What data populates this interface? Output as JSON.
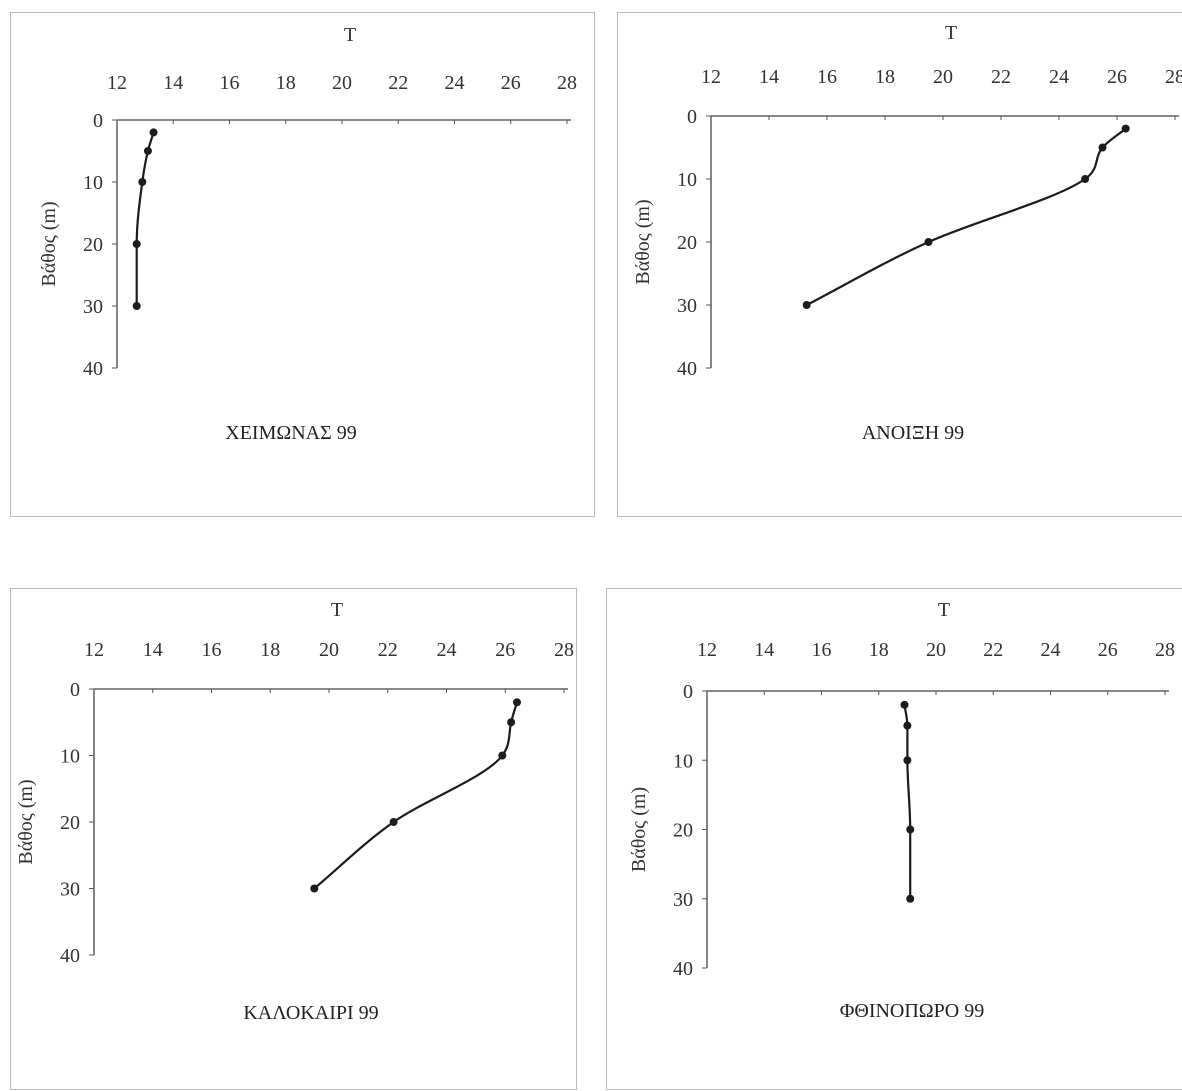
{
  "chart_data": [
    {
      "type": "line",
      "title": "ΧΕΙΜΩΝΑΣ 99",
      "xlabel": "T",
      "ylabel": "Βάθος (m)",
      "xlim": [
        12,
        28
      ],
      "ylim": [
        0,
        40
      ],
      "y_inverted": true,
      "x_axis_position": "top",
      "x_ticks": [
        "12",
        "14",
        "16",
        "18",
        "20",
        "22",
        "24",
        "26",
        "28"
      ],
      "y_ticks": [
        "0",
        "10",
        "20",
        "30",
        "40"
      ],
      "grid": false,
      "points": [
        {
          "x": 13.3,
          "y": 2
        },
        {
          "x": 13.1,
          "y": 5
        },
        {
          "x": 12.9,
          "y": 10
        },
        {
          "x": 12.7,
          "y": 20
        },
        {
          "x": 12.7,
          "y": 30
        }
      ]
    },
    {
      "type": "line",
      "title": "ΑΝΟΙΞΗ 99",
      "xlabel": "T",
      "ylabel": "Βάθος (m)",
      "xlim": [
        12,
        28
      ],
      "ylim": [
        0,
        40
      ],
      "y_inverted": true,
      "x_axis_position": "top",
      "x_ticks": [
        "12",
        "14",
        "16",
        "18",
        "20",
        "22",
        "24",
        "26",
        "28"
      ],
      "y_ticks": [
        "0",
        "10",
        "20",
        "30",
        "40"
      ],
      "grid": false,
      "points": [
        {
          "x": 26.3,
          "y": 2
        },
        {
          "x": 25.5,
          "y": 5
        },
        {
          "x": 24.9,
          "y": 10
        },
        {
          "x": 19.5,
          "y": 20
        },
        {
          "x": 15.3,
          "y": 30
        }
      ]
    },
    {
      "type": "line",
      "title": "ΚΑΛΟΚΑΙΡΙ 99",
      "xlabel": "T",
      "ylabel": "Βάθος (m)",
      "xlim": [
        12,
        28
      ],
      "ylim": [
        0,
        40
      ],
      "y_inverted": true,
      "x_axis_position": "top",
      "x_ticks": [
        "12",
        "14",
        "16",
        "18",
        "20",
        "22",
        "24",
        "26",
        "28"
      ],
      "y_ticks": [
        "0",
        "10",
        "20",
        "30",
        "40"
      ],
      "grid": false,
      "points": [
        {
          "x": 26.4,
          "y": 2
        },
        {
          "x": 26.2,
          "y": 5
        },
        {
          "x": 25.9,
          "y": 10
        },
        {
          "x": 22.2,
          "y": 20
        },
        {
          "x": 19.5,
          "y": 30
        }
      ]
    },
    {
      "type": "line",
      "title": "ΦΘΙΝΟΠΩΡΟ 99",
      "xlabel": "T",
      "ylabel": "Βάθος (m)",
      "xlim": [
        12,
        28
      ],
      "ylim": [
        0,
        40
      ],
      "y_inverted": true,
      "x_axis_position": "top",
      "x_ticks": [
        "12",
        "14",
        "16",
        "18",
        "20",
        "22",
        "24",
        "26",
        "28"
      ],
      "y_ticks": [
        "0",
        "10",
        "20",
        "30",
        "40"
      ],
      "grid": false,
      "points": [
        {
          "x": 18.9,
          "y": 2
        },
        {
          "x": 19.0,
          "y": 5
        },
        {
          "x": 19.0,
          "y": 10
        },
        {
          "x": 19.1,
          "y": 20
        },
        {
          "x": 19.1,
          "y": 30
        }
      ]
    }
  ]
}
